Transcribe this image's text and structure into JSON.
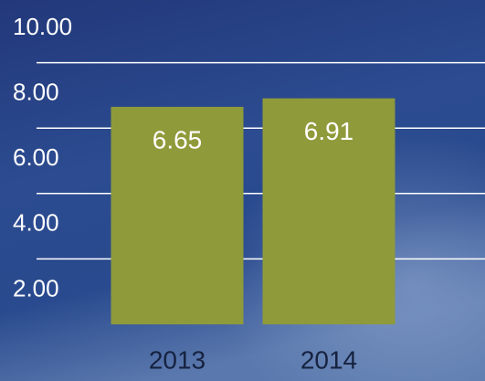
{
  "chart_data": {
    "type": "bar",
    "categories": [
      "2013",
      "2014"
    ],
    "values": [
      6.65,
      6.91
    ],
    "color": "#8f9a3b",
    "ylim": [
      0,
      10
    ],
    "yticks": [
      {
        "value": 2,
        "label": "2.00"
      },
      {
        "value": 4,
        "label": "4.00"
      },
      {
        "value": 6,
        "label": "6.00"
      },
      {
        "value": 8,
        "label": "8.00"
      },
      {
        "value": 10,
        "label": "10.00"
      }
    ],
    "grid": true
  }
}
